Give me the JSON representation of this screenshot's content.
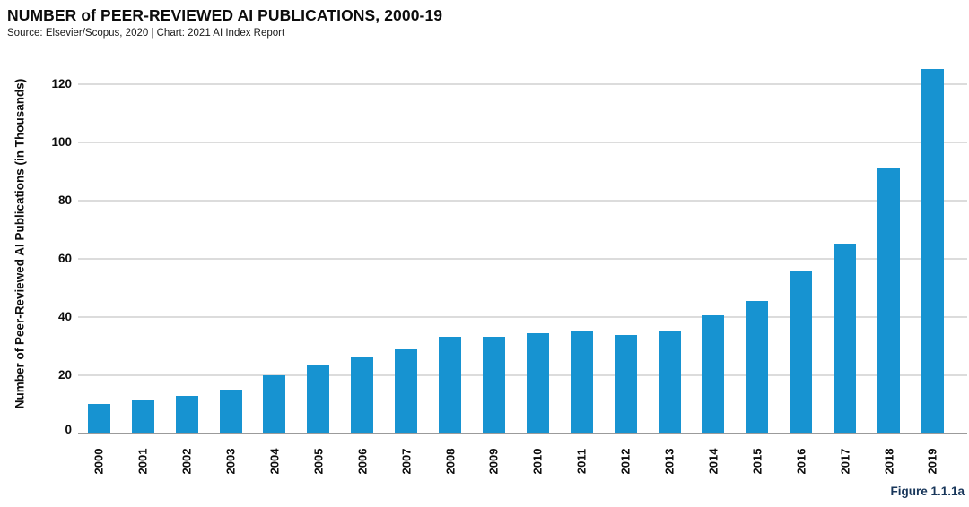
{
  "header": {
    "title": "NUMBER of PEER-REVIEWED AI PUBLICATIONS, 2000-19",
    "source": "Source: Elsevier/Scopus, 2020 | Chart: 2021 AI Index Report"
  },
  "figure_label": "Figure 1.1.1a",
  "colors": {
    "bar": "#1793d1",
    "gridline": "#dcdcdc",
    "baseline": "#9b9b9b",
    "figure_label": "#18365a",
    "text": "#0d0d0d"
  },
  "chart_data": {
    "type": "bar",
    "title": "NUMBER of PEER-REVIEWED AI PUBLICATIONS, 2000-19",
    "subtitle": "Source: Elsevier/Scopus, 2020 | Chart: 2021 AI Index Report",
    "categories": [
      "2000",
      "2001",
      "2002",
      "2003",
      "2004",
      "2005",
      "2006",
      "2007",
      "2008",
      "2009",
      "2010",
      "2011",
      "2012",
      "2013",
      "2014",
      "2015",
      "2016",
      "2017",
      "2018",
      "2019"
    ],
    "values": [
      10.2,
      11.6,
      12.9,
      15.2,
      20.0,
      23.5,
      26.2,
      28.8,
      33.1,
      33.2,
      34.4,
      34.9,
      33.9,
      35.5,
      40.7,
      45.4,
      55.5,
      65.3,
      90.9,
      125.2
    ],
    "xlabel": "",
    "ylabel": "Number of Peer-Reviewed AI Publications (in Thousands)",
    "ylim": [
      0,
      130
    ],
    "yticks": [
      0,
      20,
      40,
      60,
      80,
      100,
      120
    ],
    "grid": true,
    "legend_position": "none",
    "annotations": [
      "Figure 1.1.1a"
    ]
  }
}
